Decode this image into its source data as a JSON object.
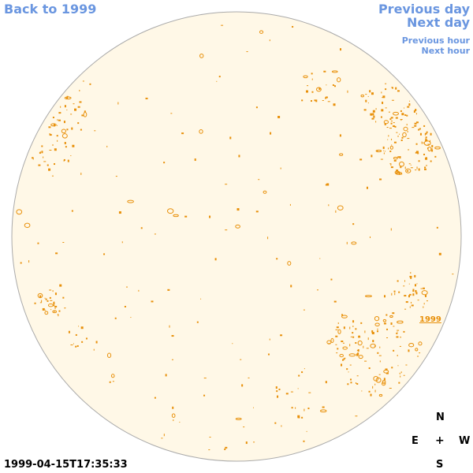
{
  "navigation": {
    "back_link": "Back to 1999",
    "previous_day": "Previous day",
    "next_day": "Next day",
    "previous_hour": "Previous hour",
    "next_hour": "Next hour"
  },
  "solar_disk": {
    "disk_fill_color": "#fff8e7",
    "disk_outline_color": "#aaaaaa",
    "contour_color": "#e8900a"
  },
  "region_label": "1999",
  "timestamp": "1999-04-15T17:35:33",
  "compass": {
    "north": "N",
    "east": "E",
    "center": "+",
    "west": "W",
    "south": "S"
  }
}
